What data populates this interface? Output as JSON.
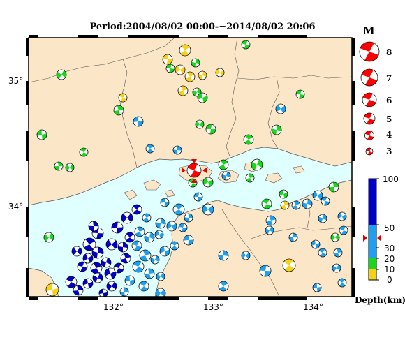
{
  "map": {
    "title": "Period:2004/08/02 00:00-−2014/08/02 20:06",
    "lat_labels": [
      "35°",
      "34°"
    ],
    "lon_labels": [
      "132°",
      "133°",
      "134°"
    ],
    "colors": {
      "sea": "#e0ffff",
      "land": "#fce6c8",
      "coast": "#555555",
      "frame": "#000000"
    }
  },
  "legend": {
    "magnitude_title": "M",
    "magnitudes": [
      "8",
      "7",
      "6",
      "5",
      "4",
      "3"
    ],
    "depth_ticks": [
      "100",
      "50",
      "30",
      "20",
      "10",
      "0"
    ],
    "depth_label": "Depth(km)",
    "depth_colors": [
      {
        "range": "50-100 km",
        "color": "#0000c8"
      },
      {
        "range": "20-50 km",
        "color": "#1e9ff0"
      },
      {
        "range": "10-20 km",
        "color": "#17d81f"
      },
      {
        "range": "0-10 km",
        "color": "#f5d218"
      }
    ],
    "highlight_color": "#ff0000"
  }
}
